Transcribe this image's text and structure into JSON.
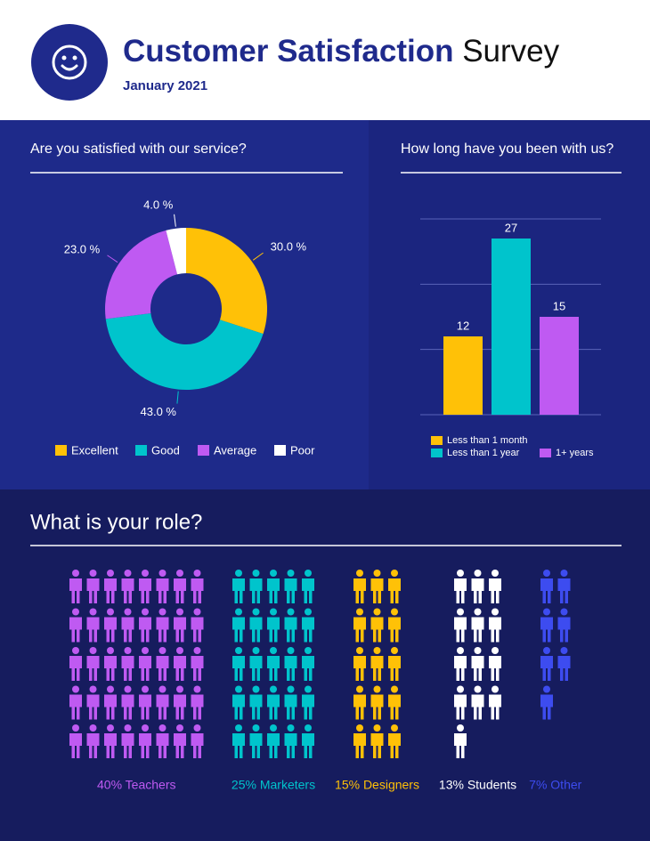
{
  "header": {
    "title_bold": "Customer Satisfaction",
    "title_light": "Survey",
    "subtitle": "January 2021"
  },
  "chart_data": [
    {
      "type": "pie",
      "title": "Are you satisfied with our service?",
      "categories": [
        "Excellent",
        "Good",
        "Average",
        "Poor"
      ],
      "values": [
        30,
        43,
        23,
        4
      ],
      "value_labels": [
        "30.0 %",
        "43.0 %",
        "23.0 %",
        "4.0 %"
      ],
      "colors": [
        "#ffc107",
        "#00c4cc",
        "#bf5af2",
        "#ffffff"
      ]
    },
    {
      "type": "bar",
      "title": "How long have you been with us?",
      "categories": [
        "Less than 1 month",
        "Less than 1 year",
        "1+ years"
      ],
      "values": [
        12,
        27,
        15
      ],
      "colors": [
        "#ffc107",
        "#00c4cc",
        "#bf5af2"
      ],
      "ylim": [
        0,
        30
      ],
      "yticks": [
        0,
        10,
        20,
        30
      ],
      "grid": true
    },
    {
      "type": "pictogram",
      "title": "What is your role?",
      "categories": [
        "40% Teachers",
        "25% Marketers",
        "15% Designers",
        "13% Students",
        "7% Other"
      ],
      "values": [
        40,
        25,
        15,
        13,
        7
      ],
      "colors": [
        "#bf5af2",
        "#00c4cc",
        "#ffc107",
        "#ffffff",
        "#3d4cf0"
      ]
    }
  ]
}
